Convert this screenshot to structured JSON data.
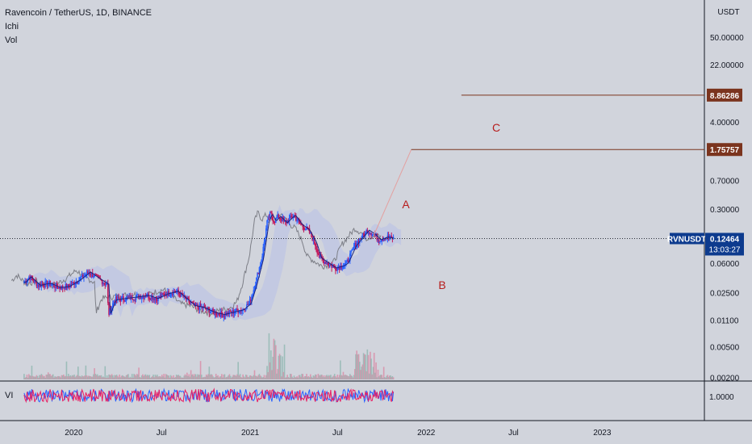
{
  "header": {
    "symbol_line": "Ravencoin / TetherUS, 1D, BINANCE",
    "indicator_1": "Ichi",
    "indicator_2": "Vol"
  },
  "sub_pane": {
    "label": "VI",
    "value_label": "1.0000"
  },
  "price_axis": {
    "unit": "USDT"
  },
  "colors": {
    "background": "#d1d4dc",
    "candle_up": "#2962ff",
    "candle_down": "#c2185b",
    "level_line": "#7b341e",
    "price_tag": "#0d3b8e",
    "wave_label": "#b71c1c",
    "vi_plus": "#2962ff",
    "vi_minus": "#e91e63"
  },
  "annotations": {
    "wave_a": "A",
    "wave_b": "B",
    "wave_c": "C"
  },
  "current_price": {
    "symbol": "RVNUSDT",
    "price": "0.12464",
    "countdown": "13:03:27"
  },
  "chart_data": {
    "type": "line",
    "title": "Ravencoin / TetherUS, 1D, BINANCE",
    "y_scale": "log",
    "ylim": [
      0.0018,
      150
    ],
    "y_ticks": [
      "50.00000",
      "22.00000",
      "4.00000",
      "0.70000",
      "0.30000",
      "0.06000",
      "0.02500",
      "0.01100",
      "0.00500",
      "0.00200"
    ],
    "x_ticks": [
      "2020",
      "Jul",
      "2021",
      "Jul",
      "2022",
      "Jul",
      "2023"
    ],
    "x_tick_dates": [
      "2020-01-01",
      "2020-07-01",
      "2021-01-01",
      "2021-07-01",
      "2022-01-01",
      "2022-07-01",
      "2023-01-01"
    ],
    "xlim": [
      "2019-08-01",
      "2023-08-01"
    ],
    "levels": [
      {
        "label": "8.86286",
        "value": 8.86286,
        "from": "2022-03-15"
      },
      {
        "label": "1.75757",
        "value": 1.75757,
        "from": "2021-12-01"
      }
    ],
    "projection": {
      "from": [
        "2021-09-15",
        0.14
      ],
      "to": [
        "2021-12-01",
        1.75757
      ]
    },
    "series": [
      {
        "x": [
          "2019-09-20",
          "2019-10-01",
          "2019-10-20",
          "2019-11-10",
          "2019-12-01",
          "2019-12-20",
          "2020-01-10",
          "2020-02-01",
          "2020-02-20",
          "2020-03-10",
          "2020-03-13",
          "2020-03-25",
          "2020-04-15",
          "2020-05-10",
          "2020-06-01",
          "2020-06-20",
          "2020-07-10",
          "2020-08-01",
          "2020-08-15",
          "2020-09-05",
          "2020-09-25",
          "2020-10-15",
          "2020-11-05",
          "2020-11-25",
          "2020-12-15",
          "2020-12-30",
          "2021-01-10",
          "2021-01-25",
          "2021-02-05",
          "2021-02-12",
          "2021-02-20",
          "2021-03-01",
          "2021-03-15",
          "2021-04-01",
          "2021-04-15",
          "2021-05-01",
          "2021-05-15",
          "2021-05-25",
          "2021-06-10",
          "2021-06-25",
          "2021-07-10",
          "2021-07-20",
          "2021-08-05",
          "2021-08-20",
          "2021-09-01",
          "2021-09-15",
          "2021-09-25",
          "2021-10-10",
          "2021-10-25"
        ],
        "values": [
          0.034,
          0.04,
          0.031,
          0.033,
          0.029,
          0.03,
          0.036,
          0.046,
          0.038,
          0.032,
          0.013,
          0.02,
          0.021,
          0.022,
          0.023,
          0.021,
          0.024,
          0.026,
          0.022,
          0.017,
          0.016,
          0.014,
          0.013,
          0.014,
          0.015,
          0.018,
          0.03,
          0.07,
          0.2,
          0.26,
          0.21,
          0.24,
          0.2,
          0.25,
          0.19,
          0.16,
          0.11,
          0.07,
          0.06,
          0.052,
          0.055,
          0.06,
          0.1,
          0.13,
          0.16,
          0.14,
          0.12,
          0.13,
          0.125
        ]
      }
    ]
  }
}
